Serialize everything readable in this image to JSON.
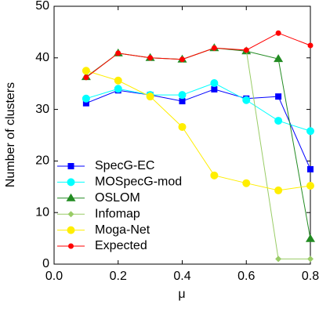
{
  "chart_data": {
    "type": "line",
    "x_label": "μ",
    "y_label": "Number of clusters",
    "x": [
      0.1,
      0.2,
      0.3,
      0.4,
      0.5,
      0.6,
      0.7,
      0.8
    ],
    "xlim": [
      0,
      0.8
    ],
    "xticks": [
      {
        "value": 0,
        "label": "0.0"
      },
      0.2,
      0.4,
      0.6,
      0.8
    ],
    "ylim": [
      0,
      50
    ],
    "yticks": [
      0,
      10,
      20,
      30,
      40,
      50
    ],
    "legend": "lower left",
    "series": [
      {
        "name": "SpecG-EC",
        "color": "#0000ff",
        "marker": "square",
        "values": [
          31.2,
          33.7,
          32.8,
          31.6,
          33.9,
          32.1,
          32.5,
          18.4
        ]
      },
      {
        "name": "MOSpecG-mod",
        "color": "#00ffff",
        "marker": "circle",
        "values": [
          32.1,
          34.0,
          32.8,
          32.8,
          35.1,
          31.8,
          27.8,
          25.8
        ]
      },
      {
        "name": "OSLOM",
        "color": "#228b22",
        "marker": "triangle",
        "values": [
          36.3,
          40.9,
          40.0,
          39.7,
          41.9,
          41.3,
          39.8,
          4.9
        ]
      },
      {
        "name": "Infomap",
        "color": "#99cc66",
        "marker": "diamond",
        "values": [
          36.2,
          40.9,
          40.0,
          39.7,
          41.9,
          41.5,
          1,
          1
        ]
      },
      {
        "name": "Moga-Net",
        "color": "#ffee00",
        "marker": "circle",
        "values": [
          37.5,
          35.6,
          32.5,
          26.6,
          17.2,
          15.7,
          14.3,
          15.2
        ]
      },
      {
        "name": "Expected",
        "color": "#ff0000",
        "marker": "dot",
        "values": [
          36.2,
          40.9,
          40.0,
          39.7,
          41.9,
          41.5,
          44.8,
          42.4
        ]
      }
    ]
  }
}
